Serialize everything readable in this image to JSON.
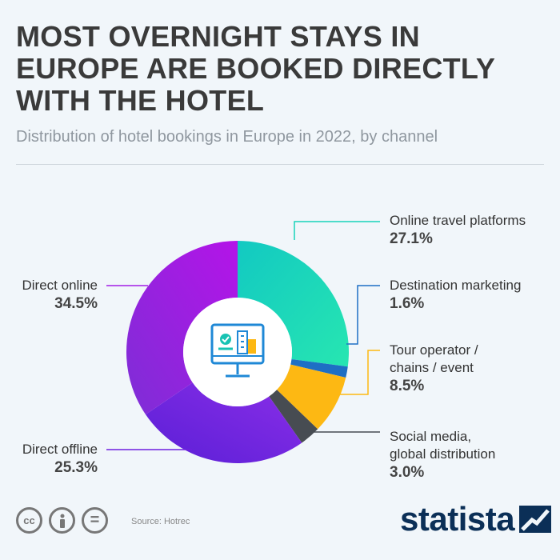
{
  "header": {
    "title": "MOST OVERNIGHT STAYS IN EUROPE ARE BOOKED DIRECTLY WITH THE HOTEL",
    "subtitle": "Distribution of hotel bookings in Europe in 2022, by channel"
  },
  "chart_data": {
    "type": "pie",
    "title": "MOST OVERNIGHT STAYS IN EUROPE ARE BOOKED DIRECTLY WITH THE HOTEL",
    "subtitle": "Distribution of hotel bookings in Europe in 2022, by channel",
    "unit": "%",
    "donut": true,
    "slices": [
      {
        "label": "Online travel platforms",
        "value": 27.1,
        "value_label": "27.1%",
        "color": "#19d3b9"
      },
      {
        "label": "Destination marketing",
        "value": 1.6,
        "value_label": "1.6%",
        "color": "#1e6fc4"
      },
      {
        "label": "Tour operator / chains / event",
        "value": 8.5,
        "value_label": "8.5%",
        "color": "#fdb813"
      },
      {
        "label": "Social media, global distribution",
        "value": 3.0,
        "value_label": "3.0%",
        "color": "#474c52"
      },
      {
        "label": "Direct offline",
        "value": 25.3,
        "value_label": "25.3%",
        "color": "#6f1ee0"
      },
      {
        "label": "Direct online",
        "value": 34.5,
        "value_label": "34.5%",
        "color": "#a21de6"
      }
    ]
  },
  "labels": {
    "online_travel": {
      "line1": "Online travel platforms",
      "pct": "27.1%"
    },
    "destination": {
      "line1": "Destination marketing",
      "pct": "1.6%"
    },
    "tour": {
      "line1": "Tour operator /",
      "line2": "chains / event",
      "pct": "8.5%"
    },
    "social": {
      "line1": "Social media,",
      "line2": "global distribution",
      "pct": "3.0%"
    },
    "direct_offline": {
      "line1": "Direct offline",
      "pct": "25.3%"
    },
    "direct_online": {
      "line1": "Direct online",
      "pct": "34.5%"
    }
  },
  "footer": {
    "source": "Source: Hotrec",
    "brand": "statista",
    "icons": [
      "cc-icon",
      "info-person-icon",
      "equals-icon"
    ],
    "cc_text": "cc",
    "eq_text": "="
  },
  "icons": {
    "center": "hotel-booking-monitor-icon"
  }
}
